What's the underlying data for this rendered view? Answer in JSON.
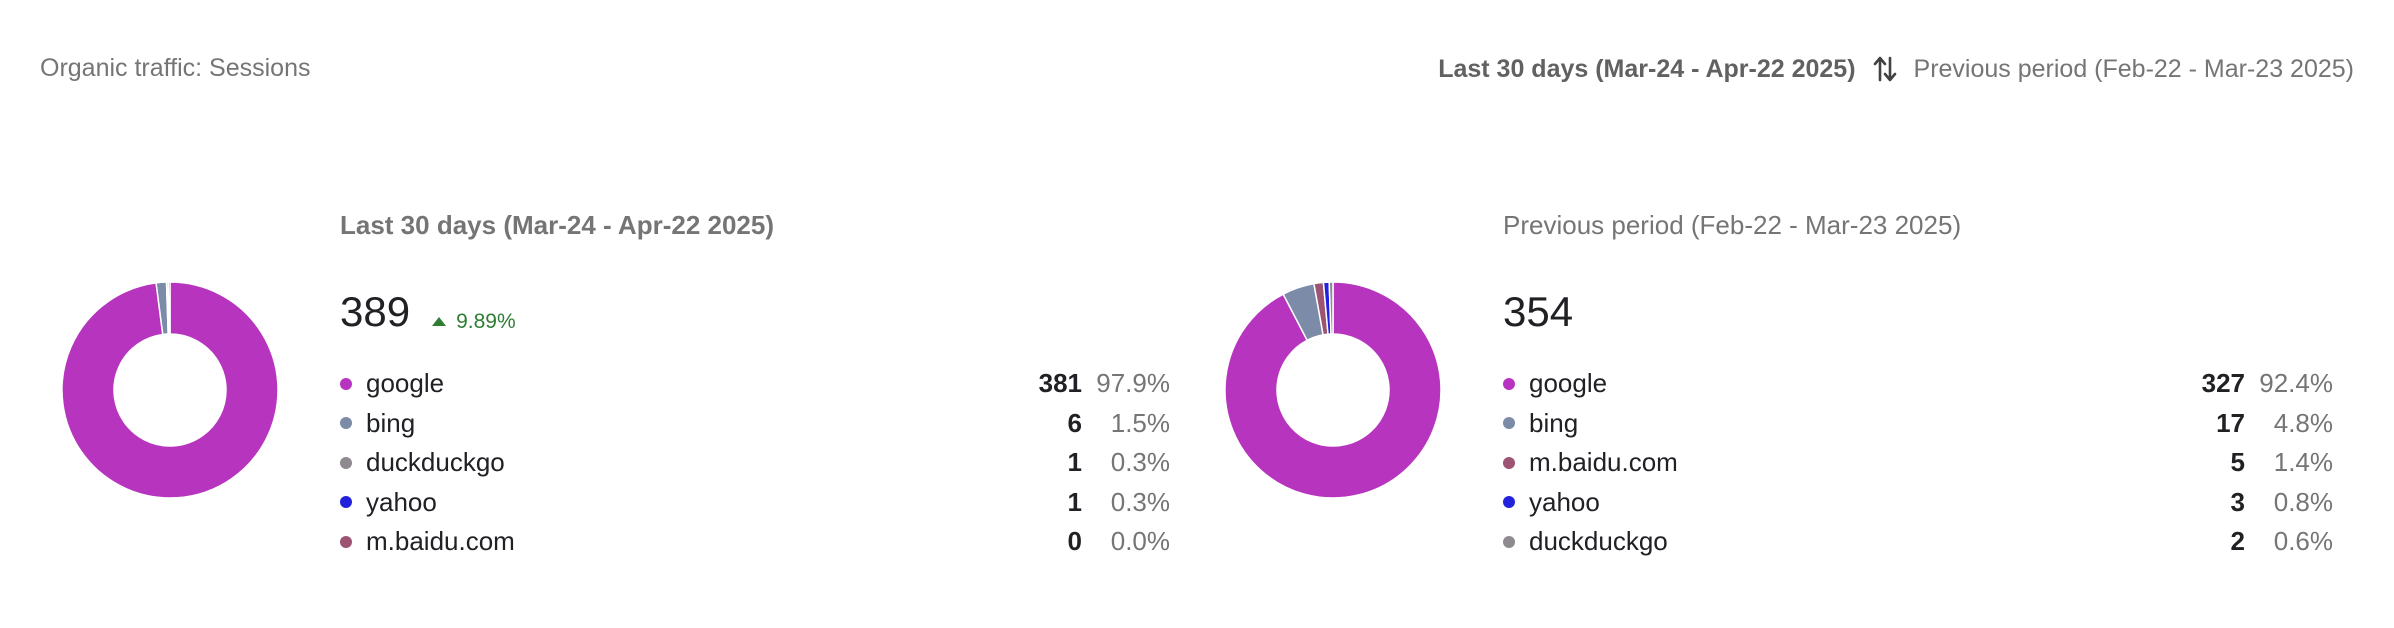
{
  "title": "Organic traffic: Sessions",
  "period_switch": {
    "current": "Last 30 days (Mar-24 - Apr-22 2025)",
    "swap_icon": "swap-vertical-icon",
    "previous": "Previous period (Feb-22 - Mar-23 2025)"
  },
  "colors": {
    "google": "#b734be",
    "bing": "#7b8ba8",
    "duckduckgo": "#8e8a8f",
    "yahoo": "#2222dd",
    "m.baidu.com": "#9c5472",
    "positive": "#2e7d32"
  },
  "current": {
    "label": "Last 30 days (Mar-24 - Apr-22 2025)",
    "total": "389",
    "change": "9.89%",
    "change_direction": "up",
    "sources": [
      {
        "name": "google",
        "count": "381",
        "pct": "97.9%",
        "value": 381
      },
      {
        "name": "bing",
        "count": "6",
        "pct": "1.5%",
        "value": 6
      },
      {
        "name": "duckduckgo",
        "count": "1",
        "pct": "0.3%",
        "value": 1
      },
      {
        "name": "yahoo",
        "count": "1",
        "pct": "0.3%",
        "value": 1
      },
      {
        "name": "m.baidu.com",
        "count": "0",
        "pct": "0.0%",
        "value": 0
      }
    ]
  },
  "previous": {
    "label": "Previous period (Feb-22 - Mar-23 2025)",
    "total": "354",
    "sources": [
      {
        "name": "google",
        "count": "327",
        "pct": "92.4%",
        "value": 327
      },
      {
        "name": "bing",
        "count": "17",
        "pct": "4.8%",
        "value": 17
      },
      {
        "name": "m.baidu.com",
        "count": "5",
        "pct": "1.4%",
        "value": 5
      },
      {
        "name": "yahoo",
        "count": "3",
        "pct": "0.8%",
        "value": 3
      },
      {
        "name": "duckduckgo",
        "count": "2",
        "pct": "0.6%",
        "value": 2
      }
    ]
  }
}
